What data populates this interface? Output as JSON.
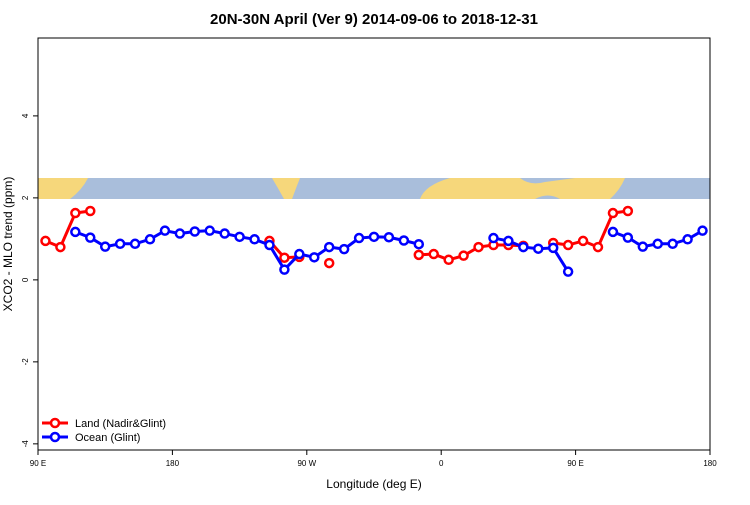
{
  "chart_data": {
    "type": "line",
    "title": "20N-30N April (Ver 9)   2014-09-06 to 2018-12-31",
    "x_label": "Longitude (deg E)",
    "y_label": "XCO2 - MLO trend (ppm)",
    "xlim": [
      90,
      540
    ],
    "xticks": [
      {
        "value": 90,
        "label": "90 E"
      },
      {
        "value": 180,
        "label": "180"
      },
      {
        "value": 270,
        "label": "90 W"
      },
      {
        "value": 360,
        "label": "0"
      },
      {
        "value": 450,
        "label": "90 E"
      },
      {
        "value": 540,
        "label": "180"
      }
    ],
    "ylim": [
      -4.15,
      5.9
    ],
    "yticks": [
      -4,
      -2,
      0,
      2,
      4
    ],
    "legend": "bottom-left",
    "series": [
      {
        "name": "Land (Nadir&Glint)",
        "color": "#ff0000",
        "x": [
          95,
          105,
          115,
          125,
          135,
          245,
          255,
          265,
          275,
          285,
          295,
          345,
          355,
          365,
          375,
          385,
          395,
          405,
          415,
          425,
          435,
          445,
          455,
          465,
          475,
          485
        ],
        "values": [
          0.95,
          0.8,
          1.63,
          1.68,
          null,
          0.95,
          0.54,
          0.56,
          null,
          0.41,
          null,
          0.61,
          0.63,
          0.49,
          0.59,
          0.8,
          0.85,
          0.85,
          0.83,
          null,
          0.9,
          0.85,
          0.95,
          0.8,
          1.63,
          1.68
        ]
      },
      {
        "name": "Ocean (Glint)",
        "color": "#0000ff",
        "x": [
          115,
          125,
          135,
          145,
          155,
          165,
          175,
          185,
          195,
          205,
          215,
          225,
          235,
          245,
          255,
          265,
          275,
          285,
          295,
          305,
          315,
          325,
          335,
          345,
          355,
          395,
          405,
          415,
          425,
          435,
          445,
          455,
          475,
          485,
          495,
          505,
          515,
          525,
          535
        ],
        "values": [
          1.17,
          1.03,
          0.81,
          0.88,
          0.88,
          0.99,
          1.2,
          1.13,
          1.18,
          1.2,
          1.13,
          1.05,
          0.99,
          0.85,
          0.25,
          0.63,
          0.55,
          0.8,
          0.75,
          1.02,
          1.05,
          1.04,
          0.96,
          0.87,
          null,
          1.02,
          0.95,
          0.8,
          0.76,
          0.78,
          0.2,
          null,
          1.17,
          1.03,
          0.81,
          0.88,
          0.88,
          0.99,
          1.2
        ]
      }
    ]
  }
}
